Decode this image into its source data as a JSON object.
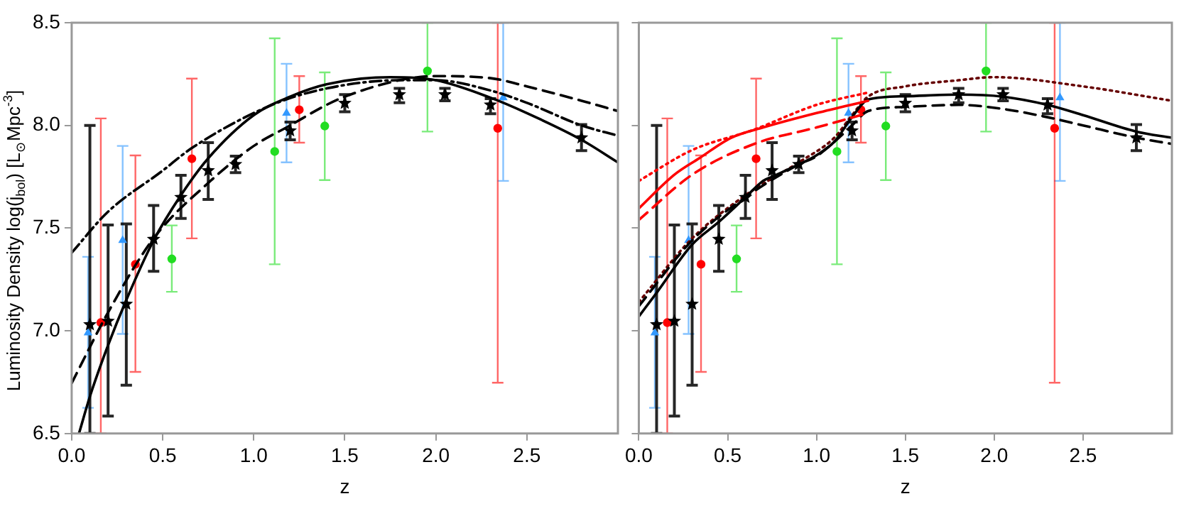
{
  "chart_data": [
    {
      "type": "scatter",
      "xlabel": "z",
      "ylabel": "Luminosity Density  log(j$_{bol}$) [L$_{⊙}$Mpc$^{-3}$]",
      "xlim": [
        0,
        3
      ],
      "ylim": [
        6.5,
        8.5
      ],
      "xticks": [
        {
          "value": 0,
          "label": "0.0"
        },
        0.5,
        {
          "value": 1,
          "label": "1.0"
        },
        1.5,
        {
          "value": 2,
          "label": "2.0"
        },
        2.5
      ],
      "yticks": [
        6.5,
        {
          "value": 7,
          "label": "7.0"
        },
        7.5,
        {
          "value": 8,
          "label": "8.0"
        },
        8.5
      ],
      "grid": false,
      "legend": false,
      "series": [
        {
          "type": "line",
          "color": "#000000",
          "line_style": "solid",
          "marker": "none",
          "x": [
            0.04,
            0.1,
            0.2,
            0.3,
            0.45,
            0.6,
            0.75,
            1.0,
            1.2,
            1.4,
            1.75,
            2.0,
            2.3,
            2.5,
            2.8,
            3.0
          ],
          "values": [
            6.5,
            6.68,
            6.93,
            7.15,
            7.44,
            7.66,
            7.84,
            8.05,
            8.14,
            8.2,
            8.235,
            8.22,
            8.135,
            8.06,
            7.93,
            7.82
          ]
        },
        {
          "type": "line",
          "color": "#000000",
          "line_style": "dashed",
          "marker": "none",
          "x": [
            0,
            0.2,
            0.45,
            0.75,
            1.0,
            1.2,
            1.4,
            1.5,
            1.8,
            2.0,
            2.3,
            2.5,
            2.8,
            3.0
          ],
          "values": [
            6.745,
            7.09,
            7.45,
            7.72,
            7.9,
            8.0,
            8.1,
            8.14,
            8.22,
            8.24,
            8.23,
            8.19,
            8.12,
            8.07
          ]
        },
        {
          "type": "line",
          "color": "#000000",
          "line_style": "dashdot",
          "marker": "none",
          "x": [
            0,
            0.2,
            0.5,
            0.66,
            1.1,
            1.4,
            1.8,
            2.0,
            2.3,
            2.5,
            2.8,
            3.0
          ],
          "values": [
            7.38,
            7.58,
            7.78,
            7.89,
            8.1,
            8.18,
            8.22,
            8.22,
            8.17,
            8.11,
            8.0,
            7.95
          ]
        },
        {
          "color": "#3399ff",
          "marker": "triangle",
          "x": [
            0.09,
            0.28,
            1.18,
            2.37
          ],
          "values": [
            6.99,
            7.44,
            8.06,
            8.135
          ],
          "errors": [
            [
              6.625,
              7.36
            ],
            [
              6.985,
              7.9
            ],
            [
              7.82,
              8.3
            ],
            [
              7.73,
              8.5
            ]
          ]
        },
        {
          "color": "#ff0000",
          "marker": "circle",
          "x": [
            0.16,
            0.35,
            0.66,
            1.25,
            2.34
          ],
          "values": [
            7.04,
            7.324,
            7.838,
            8.076,
            7.986
          ],
          "errors": [
            [
              6.5,
              8.034
            ],
            [
              6.8,
              7.854
            ],
            [
              7.45,
              8.228
            ],
            [
              7.916,
              8.24
            ],
            [
              6.747,
              8.5
            ]
          ]
        },
        {
          "color": "#22dd22",
          "marker": "circle",
          "x": [
            0.55,
            1.115,
            1.39,
            1.954
          ],
          "values": [
            7.35,
            7.873,
            7.997,
            8.265
          ],
          "errors": [
            [
              7.19,
              7.513
            ],
            [
              7.324,
              8.424
            ],
            [
              7.734,
              8.258
            ],
            [
              7.97,
              8.5
            ]
          ]
        },
        {
          "color": "#000000",
          "marker": "star",
          "x": [
            0.1,
            0.2,
            0.3,
            0.45,
            0.6,
            0.75,
            0.9,
            1.2,
            1.5,
            1.8,
            2.05,
            2.3,
            2.8
          ],
          "values": [
            7.03,
            7.047,
            7.13,
            7.446,
            7.65,
            7.78,
            7.81,
            7.974,
            8.108,
            8.15,
            8.15,
            8.1,
            7.94
          ],
          "errors": [
            [
              6.5,
              8.0
            ],
            [
              6.585,
              7.515
            ],
            [
              6.735,
              7.52
            ],
            [
              7.29,
              7.61
            ],
            [
              7.547,
              7.757
            ],
            [
              7.64,
              7.916
            ],
            [
              7.77,
              7.85
            ],
            [
              7.93,
              8.016
            ],
            [
              8.066,
              8.15
            ],
            [
              8.11,
              8.18
            ],
            [
              8.12,
              8.18
            ],
            [
              8.057,
              8.13
            ],
            [
              7.877,
              8.004
            ]
          ]
        }
      ]
    },
    {
      "type": "scatter",
      "xlabel": "z",
      "xlim": [
        0,
        3
      ],
      "ylim": [
        6.5,
        8.5
      ],
      "xticks": [
        {
          "value": 0,
          "label": "0.0"
        },
        0.5,
        {
          "value": 1,
          "label": "1.0"
        },
        1.5,
        {
          "value": 2,
          "label": "2.0"
        },
        2.5
      ],
      "yticks": [
        {
          "value": 6.5,
          "label": null
        },
        {
          "value": 7,
          "label": null
        },
        {
          "value": 7.5,
          "label": null
        },
        {
          "value": 8,
          "label": null
        },
        {
          "value": 8.5,
          "label": null
        }
      ],
      "tick_labels": "x",
      "grid": false,
      "legend": false,
      "series": [
        {
          "type": "line",
          "color": "#ff0000",
          "line_style": "solid",
          "marker": "none",
          "x": [
            0,
            0.2,
            0.34,
            0.52,
            0.7,
            1.0,
            1.29
          ],
          "values": [
            7.596,
            7.76,
            7.84,
            7.94,
            7.99,
            8.06,
            8.12
          ]
        },
        {
          "type": "line",
          "color": "#ff0000",
          "line_style": "dashed",
          "marker": "none",
          "x": [
            0,
            0.3,
            0.65,
            1.0,
            1.29
          ],
          "values": [
            7.54,
            7.76,
            7.91,
            7.99,
            8.06
          ]
        },
        {
          "type": "line",
          "color": "#ff0000",
          "line_style": "dotted",
          "marker": "none",
          "x": [
            0,
            0.3,
            0.65,
            1.0,
            1.29
          ],
          "values": [
            7.73,
            7.88,
            7.98,
            8.1,
            8.16
          ]
        },
        {
          "type": "line",
          "color": "#000000",
          "line_style": "solid",
          "marker": "none",
          "x": [
            0,
            0.1,
            0.3,
            0.45,
            0.6,
            0.7,
            0.75,
            0.9,
            1.0,
            1.1,
            1.2,
            1.29,
            1.5,
            1.8,
            2.05,
            2.3,
            2.5,
            2.8,
            3.0
          ],
          "values": [
            7.07,
            7.185,
            7.42,
            7.53,
            7.65,
            7.73,
            7.75,
            7.81,
            7.855,
            7.92,
            8.04,
            8.126,
            8.142,
            8.15,
            8.14,
            8.1,
            8.05,
            7.97,
            7.94
          ]
        },
        {
          "type": "line",
          "color": "#000000",
          "line_style": "dashed",
          "marker": "none",
          "x": [
            0,
            0.3,
            0.6,
            0.9,
            1.0,
            1.1,
            1.2,
            1.29,
            1.5,
            1.8,
            2.05,
            2.3,
            2.5,
            2.8,
            3.0
          ],
          "values": [
            7.12,
            7.44,
            7.65,
            7.81,
            7.85,
            7.92,
            8.0,
            8.07,
            8.09,
            8.1,
            8.08,
            8.04,
            8.0,
            7.94,
            7.91
          ]
        },
        {
          "type": "line",
          "color": "#660000",
          "line_style": "dotted",
          "marker": "none",
          "x": [
            0,
            0.3,
            0.6,
            0.9,
            1.1,
            1.2,
            1.29,
            1.5,
            1.8,
            2.0,
            2.5,
            3.0
          ],
          "values": [
            7.14,
            7.45,
            7.66,
            7.82,
            7.94,
            8.05,
            8.14,
            8.19,
            8.22,
            8.235,
            8.19,
            8.12
          ]
        },
        {
          "color": "#3399ff",
          "marker": "triangle",
          "x": [
            0.09,
            0.28,
            1.18,
            2.37
          ],
          "values": [
            6.99,
            7.44,
            8.06,
            8.135
          ],
          "errors": [
            [
              6.625,
              7.36
            ],
            [
              6.985,
              7.9
            ],
            [
              7.82,
              8.3
            ],
            [
              7.73,
              8.5
            ]
          ]
        },
        {
          "color": "#ff0000",
          "marker": "circle",
          "x": [
            0.16,
            0.35,
            0.66,
            1.25,
            2.34
          ],
          "values": [
            7.04,
            7.324,
            7.838,
            8.076,
            7.986
          ],
          "errors": [
            [
              6.5,
              8.034
            ],
            [
              6.8,
              7.854
            ],
            [
              7.45,
              8.228
            ],
            [
              7.916,
              8.24
            ],
            [
              6.747,
              8.5
            ]
          ]
        },
        {
          "color": "#22dd22",
          "marker": "circle",
          "x": [
            0.55,
            1.115,
            1.39,
            1.954
          ],
          "values": [
            7.35,
            7.873,
            7.997,
            8.265
          ],
          "errors": [
            [
              7.19,
              7.513
            ],
            [
              7.324,
              8.424
            ],
            [
              7.734,
              8.258
            ],
            [
              7.97,
              8.5
            ]
          ]
        },
        {
          "color": "#000000",
          "marker": "star",
          "x": [
            0.1,
            0.2,
            0.3,
            0.45,
            0.6,
            0.75,
            0.9,
            1.2,
            1.5,
            1.8,
            2.05,
            2.3,
            2.8
          ],
          "values": [
            7.03,
            7.047,
            7.13,
            7.446,
            7.65,
            7.78,
            7.81,
            7.974,
            8.108,
            8.15,
            8.15,
            8.1,
            7.94
          ],
          "errors": [
            [
              6.5,
              8.0
            ],
            [
              6.585,
              7.515
            ],
            [
              6.735,
              7.52
            ],
            [
              7.29,
              7.61
            ],
            [
              7.547,
              7.757
            ],
            [
              7.64,
              7.916
            ],
            [
              7.77,
              7.85
            ],
            [
              7.93,
              8.016
            ],
            [
              8.066,
              8.15
            ],
            [
              8.11,
              8.18
            ],
            [
              8.12,
              8.18
            ],
            [
              8.057,
              8.13
            ],
            [
              7.877,
              8.004
            ]
          ]
        }
      ]
    }
  ]
}
